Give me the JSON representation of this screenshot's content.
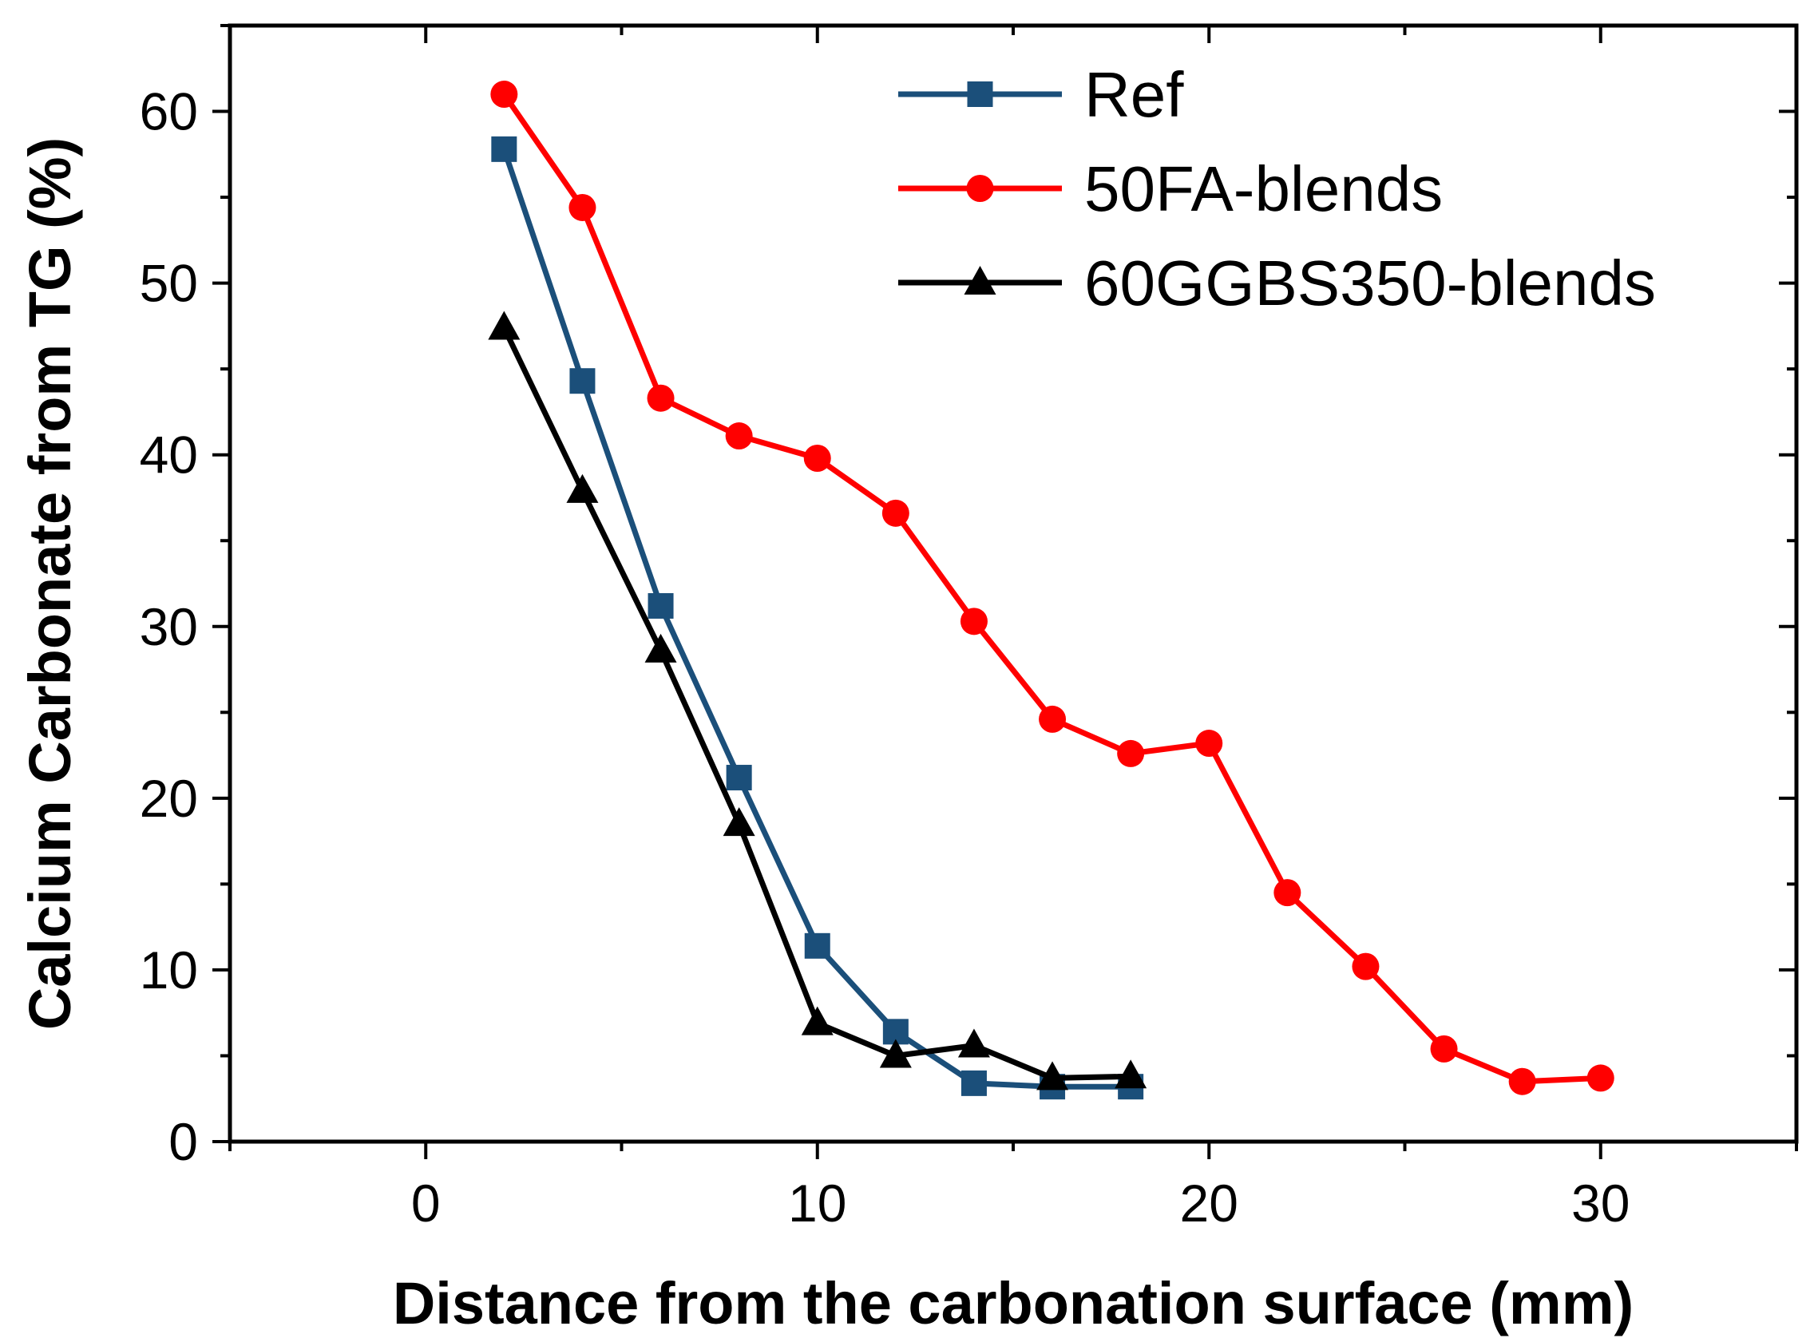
{
  "chart_data": {
    "type": "line",
    "title": "",
    "xlabel": "Distance from the carbonation surface (mm)",
    "ylabel": "Calcium Carbonate from TG (%)",
    "xlim": [
      -5,
      35
    ],
    "ylim": [
      0,
      65
    ],
    "x_ticks": [
      0,
      10,
      20,
      30
    ],
    "y_ticks": [
      0,
      10,
      20,
      30,
      40,
      50,
      60
    ],
    "x_tick_labels": [
      "0",
      "10",
      "20",
      "30"
    ],
    "y_tick_labels": [
      "0",
      "10",
      "20",
      "30",
      "40",
      "50",
      "60"
    ],
    "grid": false,
    "legend_position": "top-right",
    "series": [
      {
        "name": "Ref",
        "color": "#1b4f7a",
        "marker": "square",
        "x": [
          2,
          4,
          6,
          8,
          10,
          12,
          14,
          16,
          18
        ],
        "values": [
          57.8,
          44.3,
          31.2,
          21.2,
          11.4,
          6.4,
          3.4,
          3.2,
          3.2
        ]
      },
      {
        "name": "50FA-blends",
        "color": "#ff0000",
        "marker": "circle",
        "x": [
          2,
          4,
          6,
          8,
          10,
          12,
          14,
          16,
          18,
          20,
          22,
          24,
          26,
          28,
          30
        ],
        "values": [
          61.0,
          54.4,
          43.3,
          41.1,
          39.8,
          36.6,
          30.3,
          24.6,
          22.6,
          23.2,
          14.5,
          10.2,
          5.4,
          3.5,
          3.7
        ]
      },
      {
        "name": "60GGBS350-blends",
        "color": "#000000",
        "marker": "triangle",
        "x": [
          2,
          4,
          6,
          8,
          10,
          12,
          14,
          16,
          18
        ],
        "values": [
          47.4,
          37.9,
          28.6,
          18.5,
          6.9,
          5.0,
          5.6,
          3.7,
          3.8
        ]
      }
    ]
  }
}
